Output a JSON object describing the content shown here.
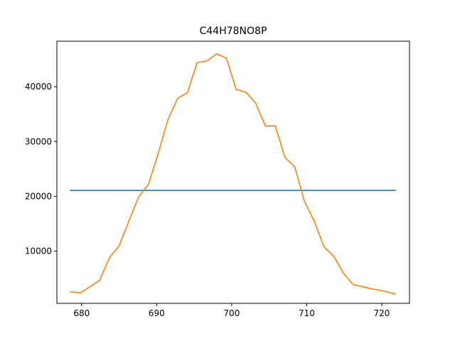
{
  "chart_data": {
    "type": "line",
    "title": "C44H78NO8P",
    "xlabel": "",
    "ylabel": "",
    "xlim": [
      676.7,
      723.7
    ],
    "ylim": [
      500,
      48300
    ],
    "xticks": [
      680,
      690,
      700,
      710,
      720
    ],
    "yticks": [
      10000,
      20000,
      30000,
      40000
    ],
    "grid": false,
    "legend": "none",
    "series": [
      {
        "color": "#1f77b4",
        "x": [
          678.5,
          721.8
        ],
        "y": [
          21100,
          21100
        ]
      },
      {
        "color": "#ff7f0e",
        "x": [
          678.5,
          679.8,
          681.1,
          682.4,
          683.7,
          685.0,
          686.3,
          687.6,
          688.9,
          690.2,
          691.5,
          692.8,
          694.1,
          695.4,
          696.7,
          698.0,
          699.3,
          700.6,
          701.9,
          703.2,
          704.5,
          705.8,
          707.1,
          708.4,
          709.7,
          711.0,
          712.3,
          713.6,
          714.9,
          716.2,
          717.5,
          718.8,
          720.1,
          721.8
        ],
        "y": [
          2600,
          2400,
          3500,
          4700,
          8800,
          11000,
          15500,
          19900,
          22200,
          27800,
          34000,
          37900,
          38900,
          44400,
          44700,
          46000,
          45200,
          39500,
          39000,
          37000,
          32800,
          32900,
          27100,
          25400,
          19100,
          15500,
          10800,
          9100,
          6000,
          3900,
          3500,
          3100,
          2800,
          2200
        ]
      }
    ]
  }
}
